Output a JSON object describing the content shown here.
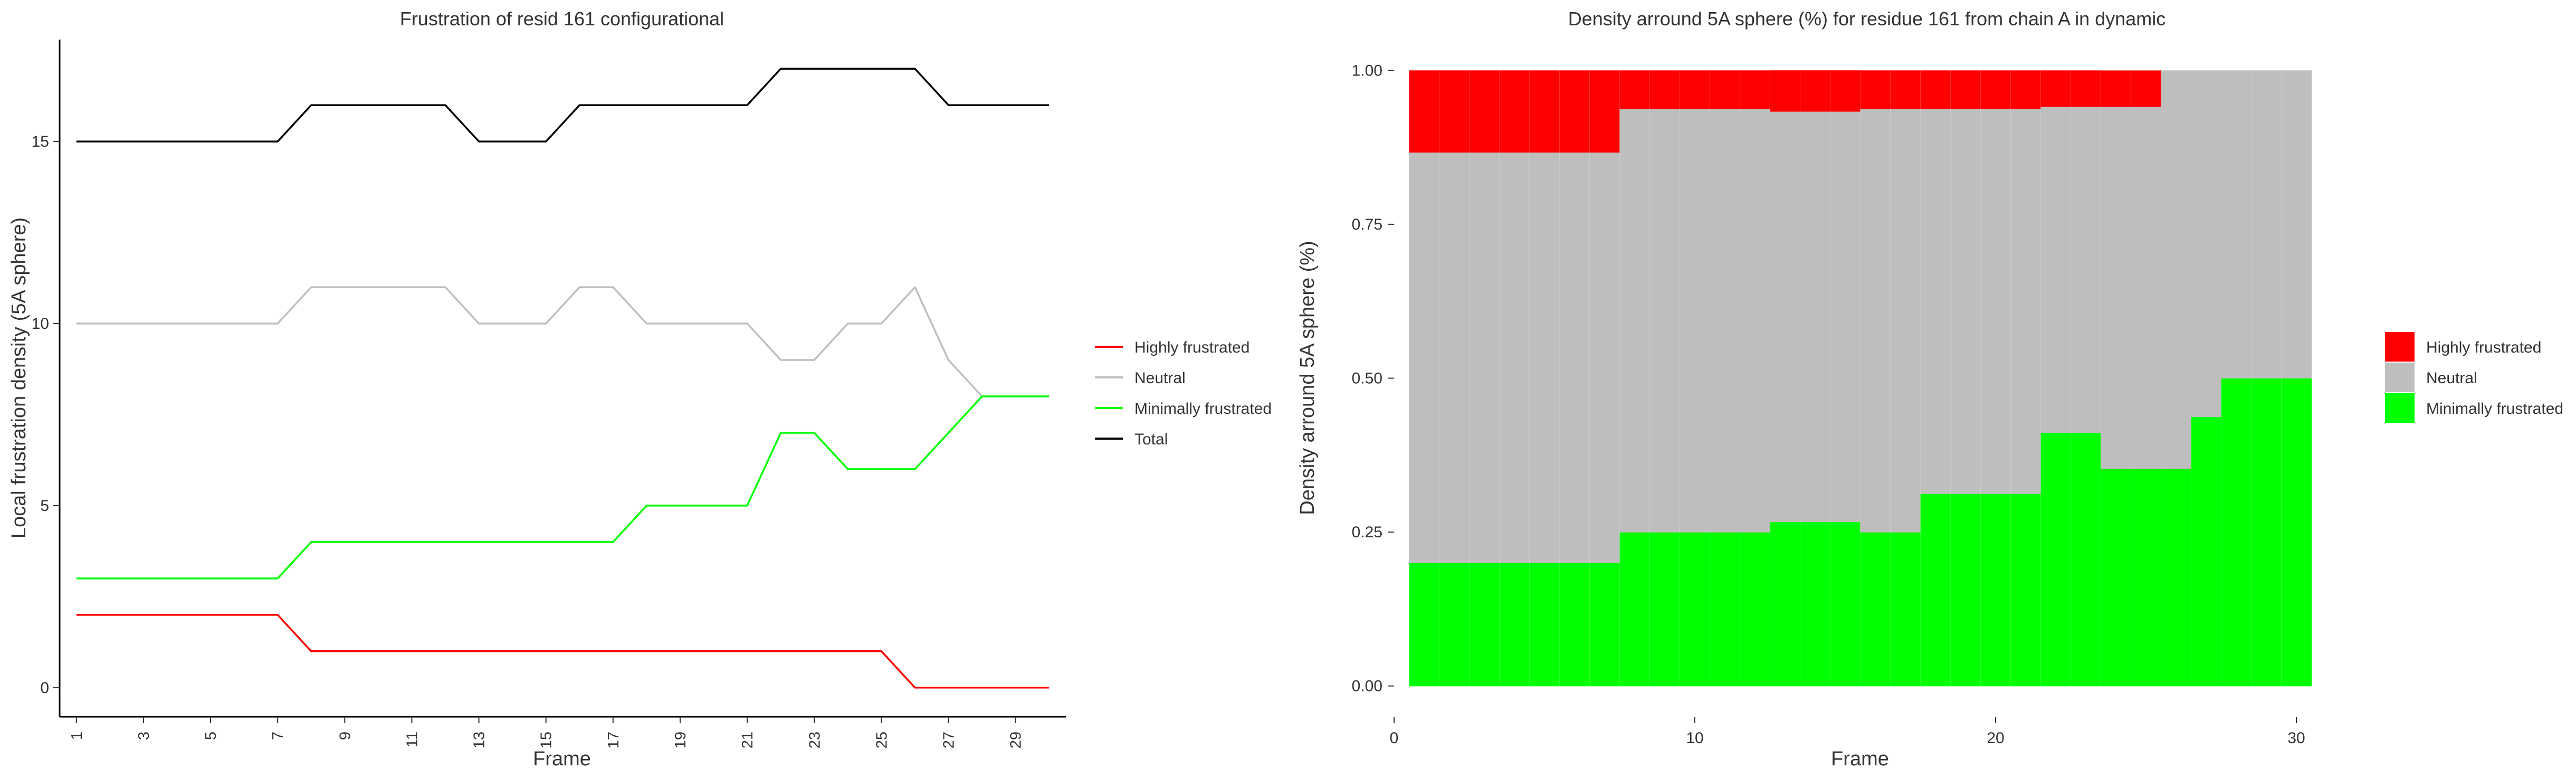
{
  "chart_data": [
    {
      "type": "line",
      "title": "Frustration of resid 161 configurational",
      "xlabel": "Frame",
      "ylabel": "Local frustration density (5A sphere)",
      "xlim": [
        0.5,
        30.5
      ],
      "ylim": [
        -0.8,
        17.8
      ],
      "xticks": [
        1,
        3,
        5,
        7,
        9,
        11,
        13,
        15,
        17,
        19,
        21,
        23,
        25,
        27,
        29
      ],
      "yticks": [
        0,
        5,
        10,
        15
      ],
      "grid": false,
      "legend_position": "right",
      "x": [
        1,
        2,
        3,
        4,
        5,
        6,
        7,
        8,
        9,
        10,
        11,
        12,
        13,
        14,
        15,
        16,
        17,
        18,
        19,
        20,
        21,
        22,
        23,
        24,
        25,
        26,
        27,
        28,
        29,
        30
      ],
      "series": [
        {
          "name": "Highly frustrated",
          "color": "#ff0000",
          "values": [
            2,
            2,
            2,
            2,
            2,
            2,
            2,
            1,
            1,
            1,
            1,
            1,
            1,
            1,
            1,
            1,
            1,
            1,
            1,
            1,
            1,
            1,
            1,
            1,
            1,
            0,
            0,
            0,
            0,
            0
          ]
        },
        {
          "name": "Neutral",
          "color": "#bebebe",
          "values": [
            10,
            10,
            10,
            10,
            10,
            10,
            10,
            11,
            11,
            11,
            11,
            11,
            10,
            10,
            10,
            11,
            11,
            10,
            10,
            10,
            10,
            9,
            9,
            10,
            10,
            11,
            9,
            8,
            8,
            8
          ]
        },
        {
          "name": "Minimally frustrated",
          "color": "#00ff00",
          "values": [
            3,
            3,
            3,
            3,
            3,
            3,
            3,
            4,
            4,
            4,
            4,
            4,
            4,
            4,
            4,
            4,
            4,
            5,
            5,
            5,
            5,
            7,
            7,
            6,
            6,
            6,
            7,
            8,
            8,
            8
          ]
        },
        {
          "name": "Total",
          "color": "#000000",
          "values": [
            15,
            15,
            15,
            15,
            15,
            15,
            15,
            16,
            16,
            16,
            16,
            16,
            15,
            15,
            15,
            16,
            16,
            16,
            16,
            16,
            16,
            17,
            17,
            17,
            17,
            17,
            16,
            16,
            16,
            16
          ]
        }
      ]
    },
    {
      "type": "area",
      "stacked": true,
      "title": "Density arround 5A sphere (%) for residue 161 from chain A in dynamic",
      "xlabel": "Frame",
      "ylabel": "Density arround 5A sphere (%)",
      "xlim": [
        0,
        31
      ],
      "ylim": [
        -0.05,
        1.05
      ],
      "xticks": [
        0,
        10,
        20,
        30
      ],
      "yticks": [
        0.0,
        0.25,
        0.5,
        0.75,
        1.0
      ],
      "yticklabels": [
        "0.00",
        "0.25",
        "0.50",
        "0.75",
        "1.00"
      ],
      "grid": false,
      "legend_position": "right",
      "x": [
        1,
        2,
        3,
        4,
        5,
        6,
        7,
        8,
        9,
        10,
        11,
        12,
        13,
        14,
        15,
        16,
        17,
        18,
        19,
        20,
        21,
        22,
        23,
        24,
        25,
        26,
        27,
        28,
        29,
        30
      ],
      "series": [
        {
          "name": "Highly frustrated",
          "color": "#ff0000",
          "values": [
            0.133,
            0.133,
            0.133,
            0.133,
            0.133,
            0.133,
            0.133,
            0.0625,
            0.0625,
            0.0625,
            0.0625,
            0.0625,
            0.0667,
            0.0667,
            0.0667,
            0.0625,
            0.0625,
            0.0625,
            0.0625,
            0.0625,
            0.0625,
            0.0588,
            0.0588,
            0.0588,
            0.0588,
            0,
            0,
            0,
            0,
            0
          ]
        },
        {
          "name": "Neutral",
          "color": "#bebebe",
          "values": [
            0.667,
            0.667,
            0.667,
            0.667,
            0.667,
            0.667,
            0.667,
            0.6875,
            0.6875,
            0.6875,
            0.6875,
            0.6875,
            0.6667,
            0.6667,
            0.6667,
            0.6875,
            0.6875,
            0.625,
            0.625,
            0.625,
            0.625,
            0.5294,
            0.5294,
            0.5882,
            0.5882,
            0.6471,
            0.5625,
            0.5,
            0.5,
            0.5
          ]
        },
        {
          "name": "Minimally frustrated",
          "color": "#00ff00",
          "values": [
            0.2,
            0.2,
            0.2,
            0.2,
            0.2,
            0.2,
            0.2,
            0.25,
            0.25,
            0.25,
            0.25,
            0.25,
            0.2667,
            0.2667,
            0.2667,
            0.25,
            0.25,
            0.3125,
            0.3125,
            0.3125,
            0.3125,
            0.4118,
            0.4118,
            0.3529,
            0.3529,
            0.3529,
            0.4375,
            0.5,
            0.5,
            0.5
          ]
        }
      ]
    }
  ]
}
